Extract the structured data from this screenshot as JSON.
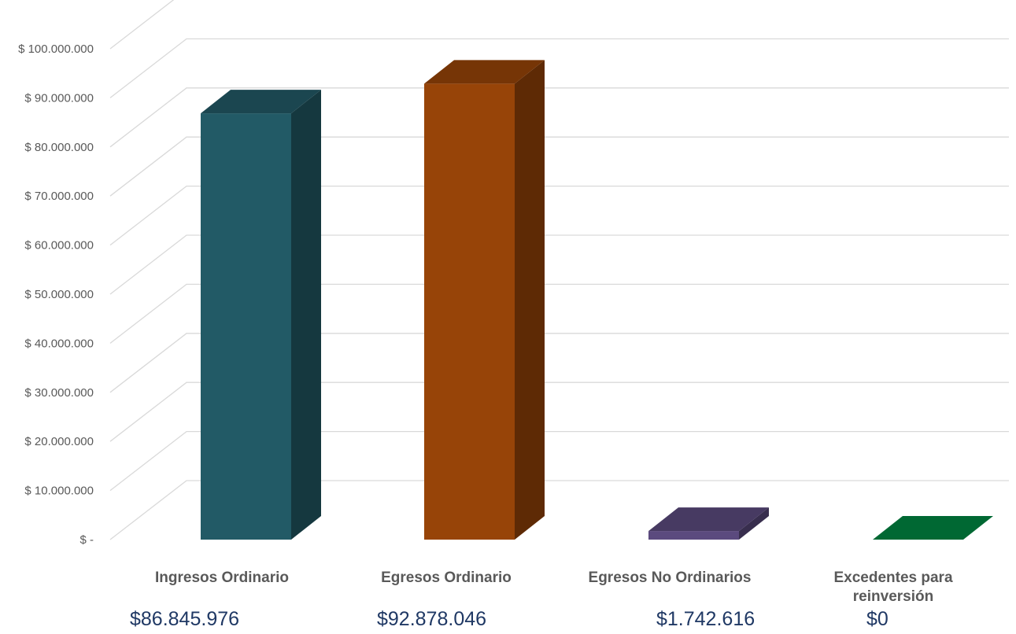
{
  "chart_data": {
    "type": "bar",
    "style": "3d-column",
    "categories": [
      "Ingresos Ordinario",
      "Egresos Ordinario",
      "Egresos No Ordinarios",
      "Excedentes para reinversión"
    ],
    "category_lines": [
      [
        "Ingresos Ordinario"
      ],
      [
        "Egresos Ordinario"
      ],
      [
        "Egresos No Ordinarios"
      ],
      [
        "Excedentes para",
        "reinversión"
      ]
    ],
    "values": [
      86845976,
      92878046,
      1742616,
      0
    ],
    "value_labels": [
      "$86.845.976",
      "$92.878.046",
      "$1.742.616",
      "$0"
    ],
    "colors": [
      "#225a66",
      "#974408",
      "#5b4a7e",
      "#008542"
    ],
    "ylim": [
      0,
      110000000
    ],
    "y_ticks": [
      0,
      10000000,
      20000000,
      30000000,
      40000000,
      50000000,
      60000000,
      70000000,
      80000000,
      90000000,
      100000000
    ],
    "y_tick_labels": [
      "$ -",
      "$ 10.000.000",
      "$ 20.000.000",
      "$ 30.000.000",
      "$ 40.000.000",
      "$ 50.000.000",
      "$ 60.000.000",
      "$ 70.000.000",
      "$ 80.000.000",
      "$ 90.000.000",
      "$ 100.000.000"
    ],
    "grid": true,
    "legend": "none",
    "title": "",
    "xlabel": "",
    "ylabel": ""
  }
}
